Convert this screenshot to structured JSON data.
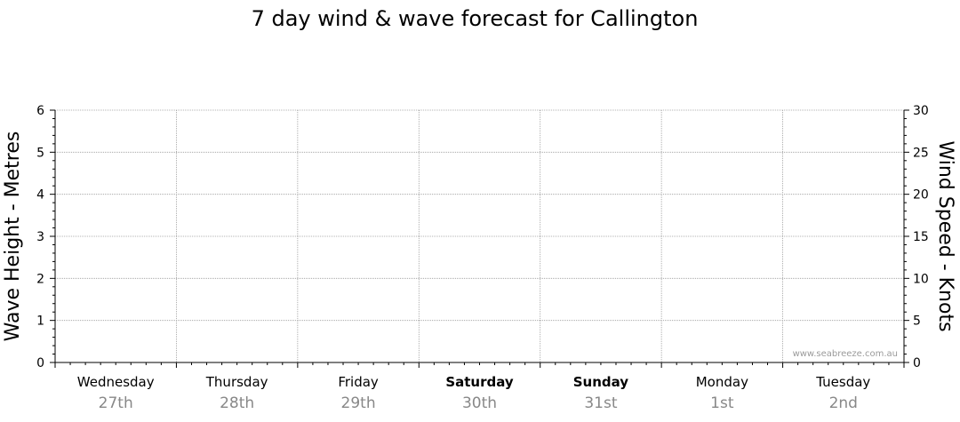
{
  "chart_data": {
    "type": "line",
    "title": "7 day wind & wave forecast for Callington",
    "left_axis": {
      "label": "Wave Height - Metres",
      "min": 0,
      "max": 6,
      "ticks": [
        0,
        1,
        2,
        3,
        4,
        5,
        6
      ]
    },
    "right_axis": {
      "label": "Wind Speed - Knots",
      "min": 0,
      "max": 30,
      "ticks": [
        0,
        5,
        10,
        15,
        20,
        25,
        30
      ]
    },
    "days": [
      {
        "name": "Wednesday",
        "date": "27th",
        "bold": false
      },
      {
        "name": "Thursday",
        "date": "28th",
        "bold": false
      },
      {
        "name": "Friday",
        "date": "29th",
        "bold": false
      },
      {
        "name": "Saturday",
        "date": "30th",
        "bold": true
      },
      {
        "name": "Sunday",
        "date": "31st",
        "bold": true
      },
      {
        "name": "Monday",
        "date": "1st",
        "bold": false
      },
      {
        "name": "Tuesday",
        "date": "2nd",
        "bold": false
      }
    ],
    "series": [],
    "grid": true,
    "credit": "www.seabreeze.com.au"
  }
}
